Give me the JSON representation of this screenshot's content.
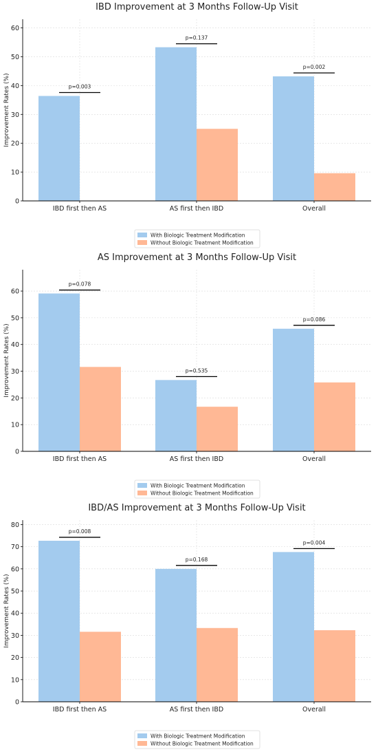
{
  "chart_data": [
    {
      "type": "bar",
      "title": "IBD Improvement at 3 Months Follow-Up Visit",
      "ylabel": "Improvement Rates (%)",
      "xlabel": "",
      "ylim": [
        0,
        63
      ],
      "yticks": [
        0,
        10,
        20,
        30,
        40,
        50,
        60
      ],
      "categories": [
        "IBD first then AS",
        "AS first then IBD",
        "Overall"
      ],
      "series": [
        {
          "name": "With Biologic Treatment Modification",
          "values": [
            36.4,
            53.3,
            43.2
          ],
          "color": "#a3cbee"
        },
        {
          "name": "Without Biologic Treatment Modification",
          "values": [
            0,
            25.0,
            9.6
          ],
          "color": "#ffb895"
        }
      ],
      "pvalues": [
        "p=0.003",
        "p=0.137",
        "p=0.002"
      ],
      "grid": true,
      "legend": "bottom-center"
    },
    {
      "type": "bar",
      "title": "AS Improvement at 3 Months Follow-Up Visit",
      "ylabel": "Improvement Rates (%)",
      "xlabel": "",
      "ylim": [
        0,
        68
      ],
      "yticks": [
        0,
        10,
        20,
        30,
        40,
        50,
        60
      ],
      "categories": [
        "IBD first then AS",
        "AS first then IBD",
        "Overall"
      ],
      "series": [
        {
          "name": "With Biologic Treatment Modification",
          "values": [
            59.1,
            26.7,
            45.9
          ],
          "color": "#a3cbee"
        },
        {
          "name": "Without Biologic Treatment Modification",
          "values": [
            31.6,
            16.7,
            25.8
          ],
          "color": "#ffb895"
        }
      ],
      "pvalues": [
        "p=0.078",
        "p=0.535",
        "p=0.086"
      ],
      "grid": true,
      "legend": "bottom-center"
    },
    {
      "type": "bar",
      "title": "IBD/AS Improvement at 3 Months Follow-Up Visit",
      "ylabel": "Improvement Rates (%)",
      "xlabel": "",
      "ylim": [
        0,
        82
      ],
      "yticks": [
        0,
        10,
        20,
        30,
        40,
        50,
        60,
        70,
        80
      ],
      "categories": [
        "IBD first then AS",
        "AS first then IBD",
        "Overall"
      ],
      "series": [
        {
          "name": "With Biologic Treatment Modification",
          "values": [
            72.7,
            60.0,
            67.6
          ],
          "color": "#a3cbee"
        },
        {
          "name": "Without Biologic Treatment Modification",
          "values": [
            31.6,
            33.3,
            32.3
          ],
          "color": "#ffb895"
        }
      ],
      "pvalues": [
        "p=0.008",
        "p=0.168",
        "p=0.004"
      ],
      "grid": true,
      "legend": "bottom-center"
    }
  ]
}
